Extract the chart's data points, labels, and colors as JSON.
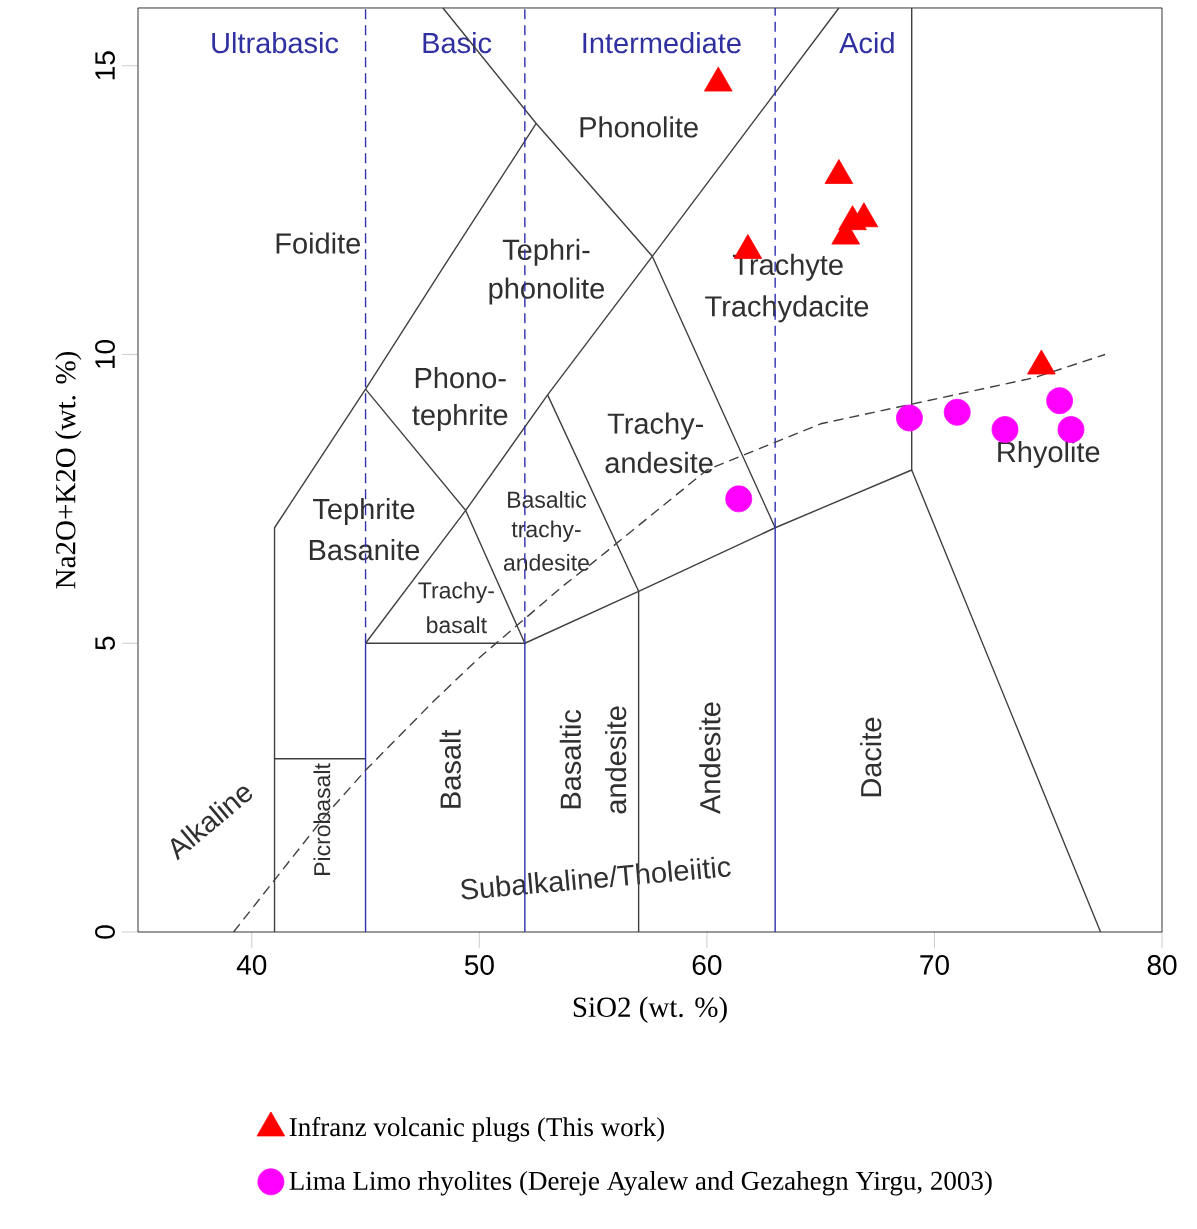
{
  "chart_data": {
    "type": "scatter",
    "xlabel": "SiO2 (wt. %)",
    "ylabel": "Na2O+K2O (wt. %)",
    "xlim": [
      35,
      80
    ],
    "ylim": [
      0,
      16
    ],
    "xticks": [
      40,
      50,
      60,
      70,
      80
    ],
    "yticks": [
      0,
      5,
      10,
      15
    ],
    "legend": "bottom",
    "series": [
      {
        "name": "Infranz volcanic plugs (This work)",
        "type": "scatter",
        "marker": "triangle",
        "color": "#ff0000",
        "x": [
          60.5,
          65.8,
          66.4,
          66.9,
          66.1,
          61.8,
          74.7
        ],
        "values": [
          14.7,
          13.1,
          12.3,
          12.35,
          12.05,
          11.8,
          9.8
        ]
      },
      {
        "name": "Lima Limo rhyolites (Dereje Ayalew and Gezahegn Yirgu, 2003)",
        "type": "scatter",
        "marker": "circle",
        "color": "#ff00ff",
        "x": [
          61.4,
          68.9,
          71.0,
          73.1,
          75.5,
          76.0
        ],
        "values": [
          7.5,
          8.9,
          9.0,
          8.7,
          9.2,
          8.7
        ]
      },
      {
        "type": "line",
        "marker": "none",
        "line_style": "solid",
        "color": "#404040",
        "x": [
          41,
          41,
          45,
          48.4,
          52.5
        ],
        "values": [
          0,
          7,
          9.4,
          11.5,
          14
        ]
      },
      {
        "type": "line",
        "marker": "none",
        "line_style": "solid",
        "color": "#404040",
        "x": [
          48.4,
          52.5,
          57.6,
          63
        ],
        "values": [
          16,
          14,
          11.7,
          7
        ]
      },
      {
        "type": "line",
        "marker": "none",
        "line_style": "solid",
        "color": "#404040",
        "x": [
          45,
          49.4,
          52
        ],
        "values": [
          9.4,
          7.3,
          5
        ]
      },
      {
        "type": "line",
        "marker": "none",
        "line_style": "solid",
        "color": "#404040",
        "x": [
          45,
          49.4,
          53,
          57.6,
          65.8
        ],
        "values": [
          5,
          7.3,
          9.3,
          11.7,
          16
        ]
      },
      {
        "type": "line",
        "marker": "none",
        "line_style": "solid",
        "color": "#404040",
        "x": [
          53,
          57,
          57
        ],
        "values": [
          9.3,
          5.9,
          0
        ]
      },
      {
        "type": "line",
        "marker": "none",
        "line_style": "solid",
        "color": "#404040",
        "x": [
          45,
          52,
          57,
          63,
          69,
          77.3
        ],
        "values": [
          5,
          5,
          5.9,
          7,
          8,
          0
        ]
      },
      {
        "type": "line",
        "marker": "none",
        "line_style": "solid",
        "color": "#404040",
        "x": [
          41,
          45
        ],
        "values": [
          3,
          3
        ]
      },
      {
        "type": "line",
        "marker": "none",
        "line_style": "solid",
        "color": "#404040",
        "x": [
          69,
          69
        ],
        "values": [
          8,
          16
        ]
      },
      {
        "type": "line",
        "marker": "none",
        "line_style": "solid",
        "color": "#3030b0",
        "x": [
          45,
          45
        ],
        "values": [
          0,
          5
        ]
      },
      {
        "type": "line",
        "marker": "none",
        "line_style": "solid",
        "color": "#3030b0",
        "x": [
          52,
          52
        ],
        "values": [
          0,
          5
        ]
      },
      {
        "type": "line",
        "marker": "none",
        "line_style": "solid",
        "color": "#3030b0",
        "x": [
          63,
          63
        ],
        "values": [
          0,
          7
        ]
      },
      {
        "type": "line",
        "marker": "none",
        "line_style": "dashed",
        "color": "#3030b0",
        "x": [
          45,
          45
        ],
        "values": [
          5,
          16
        ]
      },
      {
        "type": "line",
        "marker": "none",
        "line_style": "dashed",
        "color": "#3030b0",
        "x": [
          52,
          52
        ],
        "values": [
          5,
          16
        ]
      },
      {
        "type": "line",
        "marker": "none",
        "line_style": "dashed",
        "color": "#3030b0",
        "x": [
          63,
          63
        ],
        "values": [
          7,
          16
        ]
      },
      {
        "type": "line",
        "marker": "none",
        "line_style": "dashed",
        "color": "#404040",
        "x": [
          39.2,
          40,
          43.2,
          45,
          48,
          50,
          53.7,
          55,
          60,
          65,
          74.4,
          77.5
        ],
        "values": [
          0,
          0.4,
          2,
          2.8,
          4,
          4.75,
          6,
          6.4,
          8,
          8.8,
          9.6,
          10
        ]
      }
    ],
    "annotations": [
      "Ultrabasic",
      "Basic",
      "Intermediate",
      "Acid",
      "Phonolite",
      "Foidite",
      "Tephri-",
      "phonolite",
      "Phono-",
      "tephrite",
      "Trachyte",
      "Trachydacite",
      "Trachy-",
      "andesite",
      "Tephrite",
      "Basanite",
      "Basaltic",
      "trachy-",
      "andesite",
      "Trachy-",
      "basalt",
      "Rhyolite",
      "Picrobasalt",
      "Basalt",
      "Basaltic",
      "andesite",
      "Andesite",
      "Dacite",
      "Alkaline",
      "Subalkaline/Tholeiitic"
    ]
  }
}
